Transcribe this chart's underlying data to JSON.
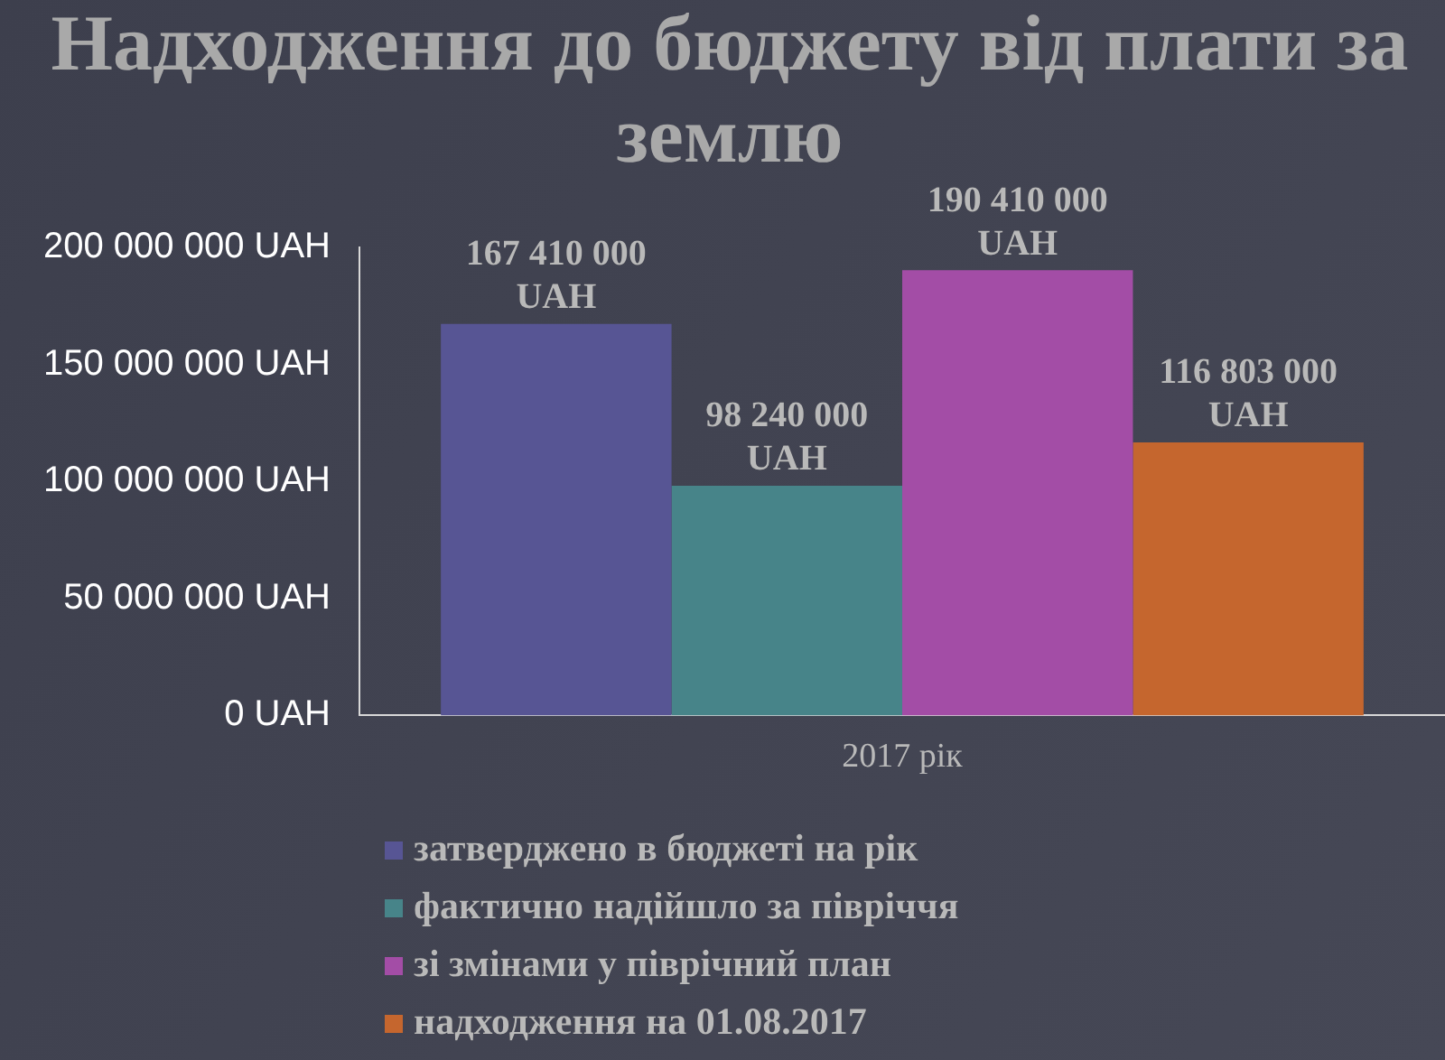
{
  "chart_data": {
    "type": "bar",
    "title": "Надходження до бюджету від плати за землю",
    "categories": [
      "2017 рік"
    ],
    "series": [
      {
        "name": "затверджено в бюджеті на рік",
        "color": "#575594",
        "values": [
          167410000
        ],
        "value_labels": [
          "167 410 000 UAH"
        ]
      },
      {
        "name": "фактично надійшло за півріччя",
        "color": "#478489",
        "values": [
          98240000
        ],
        "value_labels": [
          "98 240 000 UAH"
        ]
      },
      {
        "name": "зі змінами у піврічний план",
        "color": "#a34da6",
        "values": [
          190410000
        ],
        "value_labels": [
          "190 410 000 UAH"
        ]
      },
      {
        "name": "надходження на 01.08.2017",
        "color": "#c5662e",
        "values": [
          116803000
        ],
        "value_labels": [
          "116 803 000 UAH"
        ]
      }
    ],
    "ylim": [
      0,
      200000000
    ],
    "yticks": [
      {
        "value": 0,
        "label": "0 UAH"
      },
      {
        "value": 50000000,
        "label": "50 000 000 UAH"
      },
      {
        "value": 100000000,
        "label": "100 000 000 UAH"
      },
      {
        "value": 150000000,
        "label": "150 000 000 UAH"
      },
      {
        "value": 200000000,
        "label": "200 000 000 UAH"
      }
    ],
    "legend": "bottom"
  }
}
